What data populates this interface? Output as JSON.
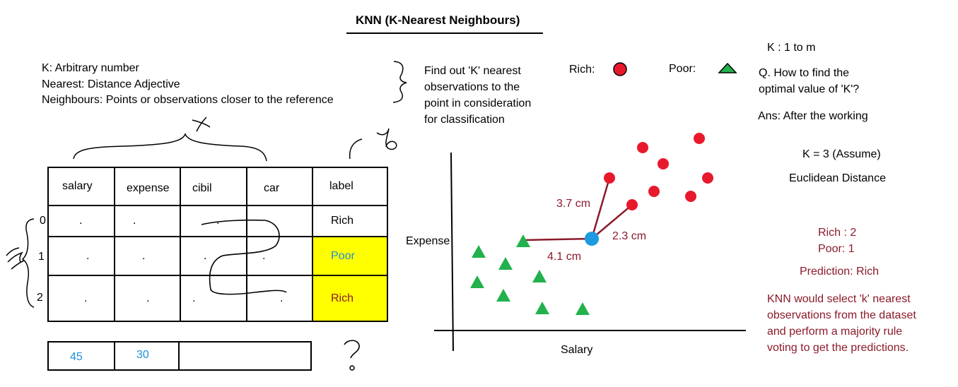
{
  "title": "KNN (K-Nearest Neighbours)",
  "definitions": [
    "K: Arbitrary number",
    "Nearest: Distance Adjective",
    "Neighbours: Points or observations closer to the reference"
  ],
  "find_text": [
    "Find out 'K' nearest",
    "observations to the",
    "point in consideration",
    "for classification"
  ],
  "legend": {
    "rich_label": "Rich:",
    "poor_label": "Poor:",
    "rich_color": "#e8192c",
    "poor_color": "#22b14c",
    "query_color": "#1e9be0"
  },
  "right_notes": {
    "k_range": "K : 1 to m",
    "question_line1": "Q. How to find the",
    "question_line2": "optimal value of 'K'?",
    "answer": "Ans: After the working",
    "k_assume": "K  = 3 (Assume)",
    "distance": "Euclidean Distance",
    "rich_count": "Rich : 2",
    "poor_count": "Poor: 1",
    "prediction": "Prediction: Rich",
    "summary": [
      "KNN would select 'k' nearest",
      "observations from the dataset",
      "and perform a majority rule",
      "voting to get the predictions."
    ]
  },
  "handwritten": {
    "x_mark": "x",
    "y_mark": "y",
    "m_mark": "m",
    "question": "?"
  },
  "table": {
    "headers": [
      "salary",
      "expense",
      "cibil",
      "car",
      "label"
    ],
    "rows": [
      {
        "index": "0",
        "cells": [
          ".",
          ".",
          ".",
          "",
          "Rich"
        ],
        "highlight": false
      },
      {
        "index": "1",
        "cells": [
          ".",
          ".",
          ".",
          ".",
          "Poor"
        ],
        "highlight": true
      },
      {
        "index": "2",
        "cells": [
          ".",
          ".",
          ".",
          ".",
          "Rich"
        ],
        "highlight": true
      }
    ]
  },
  "query_row": [
    "45",
    "30",
    ""
  ],
  "chart_data": {
    "type": "scatter",
    "xlabel": "Salary",
    "ylabel": "Expense",
    "series": [
      {
        "name": "Rich",
        "marker": "circle",
        "points": [
          [
            909,
            209
          ],
          [
            989,
            196
          ],
          [
            938,
            232
          ],
          [
            1001,
            252
          ],
          [
            925,
            271
          ],
          [
            977,
            278
          ],
          [
            862,
            252
          ],
          [
            894,
            290
          ]
        ]
      },
      {
        "name": "Poor",
        "marker": "triangle",
        "points": [
          [
            677,
            357
          ],
          [
            740,
            342
          ],
          [
            715,
            374
          ],
          [
            675,
            400
          ],
          [
            763,
            392
          ],
          [
            712,
            419
          ],
          [
            767,
            437
          ],
          [
            824,
            438
          ]
        ]
      }
    ],
    "query_point": [
      837,
      338
    ],
    "distance_labels": [
      {
        "text": "3.7 cm",
        "to": [
          862,
          252
        ]
      },
      {
        "text": "2.3 cm",
        "to": [
          894,
          290
        ]
      },
      {
        "text": "4.1 cm",
        "to": [
          740,
          340
        ]
      }
    ]
  }
}
